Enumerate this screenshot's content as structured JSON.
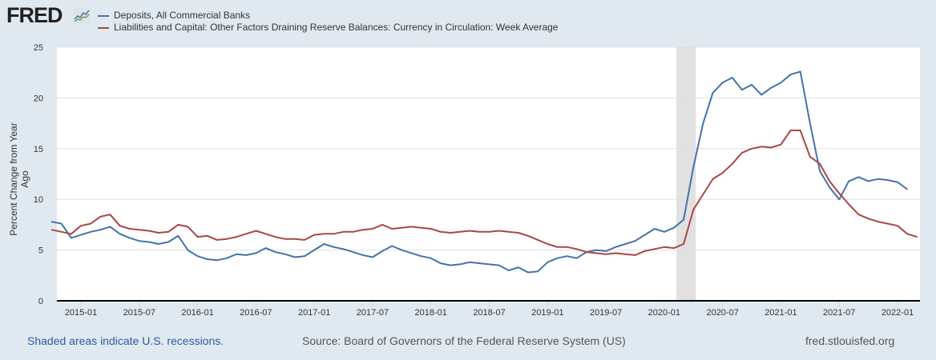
{
  "header": {
    "logo_text": "FRED",
    "logo_icon": "chart-line-icon"
  },
  "colors": {
    "deposits": "#4572a7",
    "currency": "#aa4643",
    "recession": "#e1e1e1",
    "background": "#e1e9f0",
    "link": "#2c5aa0"
  },
  "footer": {
    "recession_note": "Shaded areas indicate U.S. recessions.",
    "source": "Source: Board of Governors of the Federal Reserve System (US)",
    "site": "fred.stlouisfed.org"
  },
  "chart_data": {
    "type": "line",
    "title": "",
    "xlabel": "",
    "ylabel": "Percent Change from Year Ago",
    "ylim": [
      0,
      25
    ],
    "yticks": [
      0,
      5,
      10,
      15,
      20,
      25
    ],
    "xlim": [
      "2014-10",
      "2022-03"
    ],
    "xticks": [
      "2015-01",
      "2015-07",
      "2016-01",
      "2016-07",
      "2017-01",
      "2017-07",
      "2018-01",
      "2018-07",
      "2019-01",
      "2019-07",
      "2020-01",
      "2020-07",
      "2021-01",
      "2021-07",
      "2022-01"
    ],
    "grid": true,
    "legend": "top-left",
    "recessions": [
      {
        "start": "2020-02",
        "end": "2020-04"
      }
    ],
    "series": [
      {
        "name": "Deposits, All Commercial Banks",
        "color_key": "deposits",
        "points": [
          [
            "2014-10",
            7.8
          ],
          [
            "2014-11",
            7.6
          ],
          [
            "2014-12",
            6.2
          ],
          [
            "2015-01",
            6.5
          ],
          [
            "2015-02",
            6.8
          ],
          [
            "2015-03",
            7.0
          ],
          [
            "2015-04",
            7.3
          ],
          [
            "2015-05",
            6.6
          ],
          [
            "2015-06",
            6.2
          ],
          [
            "2015-07",
            5.9
          ],
          [
            "2015-08",
            5.8
          ],
          [
            "2015-09",
            5.6
          ],
          [
            "2015-10",
            5.8
          ],
          [
            "2015-11",
            6.4
          ],
          [
            "2015-12",
            5.0
          ],
          [
            "2016-01",
            4.4
          ],
          [
            "2016-02",
            4.1
          ],
          [
            "2016-03",
            4.0
          ],
          [
            "2016-04",
            4.2
          ],
          [
            "2016-05",
            4.6
          ],
          [
            "2016-06",
            4.5
          ],
          [
            "2016-07",
            4.7
          ],
          [
            "2016-08",
            5.2
          ],
          [
            "2016-09",
            4.8
          ],
          [
            "2016-10",
            4.6
          ],
          [
            "2016-11",
            4.3
          ],
          [
            "2016-12",
            4.4
          ],
          [
            "2017-01",
            5.0
          ],
          [
            "2017-02",
            5.6
          ],
          [
            "2017-03",
            5.3
          ],
          [
            "2017-04",
            5.1
          ],
          [
            "2017-05",
            4.8
          ],
          [
            "2017-06",
            4.5
          ],
          [
            "2017-07",
            4.3
          ],
          [
            "2017-08",
            4.9
          ],
          [
            "2017-09",
            5.4
          ],
          [
            "2017-10",
            5.0
          ],
          [
            "2017-11",
            4.7
          ],
          [
            "2017-12",
            4.4
          ],
          [
            "2018-01",
            4.2
          ],
          [
            "2018-02",
            3.7
          ],
          [
            "2018-03",
            3.5
          ],
          [
            "2018-04",
            3.6
          ],
          [
            "2018-05",
            3.8
          ],
          [
            "2018-06",
            3.7
          ],
          [
            "2018-07",
            3.6
          ],
          [
            "2018-08",
            3.5
          ],
          [
            "2018-09",
            3.0
          ],
          [
            "2018-10",
            3.3
          ],
          [
            "2018-11",
            2.8
          ],
          [
            "2018-12",
            2.9
          ],
          [
            "2019-01",
            3.8
          ],
          [
            "2019-02",
            4.2
          ],
          [
            "2019-03",
            4.4
          ],
          [
            "2019-04",
            4.2
          ],
          [
            "2019-05",
            4.8
          ],
          [
            "2019-06",
            5.0
          ],
          [
            "2019-07",
            4.9
          ],
          [
            "2019-08",
            5.3
          ],
          [
            "2019-09",
            5.6
          ],
          [
            "2019-10",
            5.9
          ],
          [
            "2019-11",
            6.5
          ],
          [
            "2019-12",
            7.1
          ],
          [
            "2020-01",
            6.8
          ],
          [
            "2020-02",
            7.2
          ],
          [
            "2020-03",
            8.0
          ],
          [
            "2020-04",
            13.2
          ],
          [
            "2020-05",
            17.5
          ],
          [
            "2020-06",
            20.5
          ],
          [
            "2020-07",
            21.5
          ],
          [
            "2020-08",
            22.0
          ],
          [
            "2020-09",
            20.8
          ],
          [
            "2020-10",
            21.3
          ],
          [
            "2020-11",
            20.3
          ],
          [
            "2020-12",
            21.0
          ],
          [
            "2021-01",
            21.5
          ],
          [
            "2021-02",
            22.3
          ],
          [
            "2021-03",
            22.6
          ],
          [
            "2021-04",
            17.5
          ],
          [
            "2021-05",
            12.8
          ],
          [
            "2021-06",
            11.2
          ],
          [
            "2021-07",
            10.0
          ],
          [
            "2021-08",
            11.8
          ],
          [
            "2021-09",
            12.2
          ],
          [
            "2021-10",
            11.8
          ],
          [
            "2021-11",
            12.0
          ],
          [
            "2021-12",
            11.9
          ],
          [
            "2022-01",
            11.7
          ],
          [
            "2022-02",
            11.0
          ]
        ]
      },
      {
        "name": "Liabilities and Capital: Other Factors Draining Reserve Balances: Currency in Circulation: Week Average",
        "color_key": "currency",
        "points": [
          [
            "2014-10",
            7.0
          ],
          [
            "2014-11",
            6.8
          ],
          [
            "2014-12",
            6.6
          ],
          [
            "2015-01",
            7.4
          ],
          [
            "2015-02",
            7.6
          ],
          [
            "2015-03",
            8.3
          ],
          [
            "2015-04",
            8.5
          ],
          [
            "2015-05",
            7.4
          ],
          [
            "2015-06",
            7.1
          ],
          [
            "2015-07",
            7.0
          ],
          [
            "2015-08",
            6.9
          ],
          [
            "2015-09",
            6.7
          ],
          [
            "2015-10",
            6.8
          ],
          [
            "2015-11",
            7.5
          ],
          [
            "2015-12",
            7.3
          ],
          [
            "2016-01",
            6.3
          ],
          [
            "2016-02",
            6.4
          ],
          [
            "2016-03",
            6.0
          ],
          [
            "2016-04",
            6.1
          ],
          [
            "2016-05",
            6.3
          ],
          [
            "2016-06",
            6.6
          ],
          [
            "2016-07",
            6.9
          ],
          [
            "2016-08",
            6.6
          ],
          [
            "2016-09",
            6.3
          ],
          [
            "2016-10",
            6.1
          ],
          [
            "2016-11",
            6.1
          ],
          [
            "2016-12",
            6.0
          ],
          [
            "2017-01",
            6.5
          ],
          [
            "2017-02",
            6.6
          ],
          [
            "2017-03",
            6.6
          ],
          [
            "2017-04",
            6.8
          ],
          [
            "2017-05",
            6.8
          ],
          [
            "2017-06",
            7.0
          ],
          [
            "2017-07",
            7.1
          ],
          [
            "2017-08",
            7.5
          ],
          [
            "2017-09",
            7.1
          ],
          [
            "2017-10",
            7.2
          ],
          [
            "2017-11",
            7.3
          ],
          [
            "2017-12",
            7.2
          ],
          [
            "2018-01",
            7.1
          ],
          [
            "2018-02",
            6.8
          ],
          [
            "2018-03",
            6.7
          ],
          [
            "2018-04",
            6.8
          ],
          [
            "2018-05",
            6.9
          ],
          [
            "2018-06",
            6.8
          ],
          [
            "2018-07",
            6.8
          ],
          [
            "2018-08",
            6.9
          ],
          [
            "2018-09",
            6.8
          ],
          [
            "2018-10",
            6.7
          ],
          [
            "2018-11",
            6.4
          ],
          [
            "2018-12",
            6.0
          ],
          [
            "2019-01",
            5.6
          ],
          [
            "2019-02",
            5.3
          ],
          [
            "2019-03",
            5.3
          ],
          [
            "2019-04",
            5.1
          ],
          [
            "2019-05",
            4.8
          ],
          [
            "2019-06",
            4.7
          ],
          [
            "2019-07",
            4.6
          ],
          [
            "2019-08",
            4.7
          ],
          [
            "2019-09",
            4.6
          ],
          [
            "2019-10",
            4.5
          ],
          [
            "2019-11",
            4.9
          ],
          [
            "2019-12",
            5.1
          ],
          [
            "2020-01",
            5.3
          ],
          [
            "2020-02",
            5.2
          ],
          [
            "2020-03",
            5.6
          ],
          [
            "2020-04",
            9.0
          ],
          [
            "2020-05",
            10.5
          ],
          [
            "2020-06",
            12.0
          ],
          [
            "2020-07",
            12.6
          ],
          [
            "2020-08",
            13.5
          ],
          [
            "2020-09",
            14.6
          ],
          [
            "2020-10",
            15.0
          ],
          [
            "2020-11",
            15.2
          ],
          [
            "2020-12",
            15.1
          ],
          [
            "2021-01",
            15.4
          ],
          [
            "2021-02",
            16.8
          ],
          [
            "2021-03",
            16.8
          ],
          [
            "2021-04",
            14.2
          ],
          [
            "2021-05",
            13.5
          ],
          [
            "2021-06",
            11.8
          ],
          [
            "2021-07",
            10.6
          ],
          [
            "2021-08",
            9.5
          ],
          [
            "2021-09",
            8.5
          ],
          [
            "2021-10",
            8.1
          ],
          [
            "2021-11",
            7.8
          ],
          [
            "2021-12",
            7.6
          ],
          [
            "2022-01",
            7.4
          ],
          [
            "2022-02",
            6.6
          ],
          [
            "2022-03",
            6.3
          ]
        ]
      }
    ]
  }
}
